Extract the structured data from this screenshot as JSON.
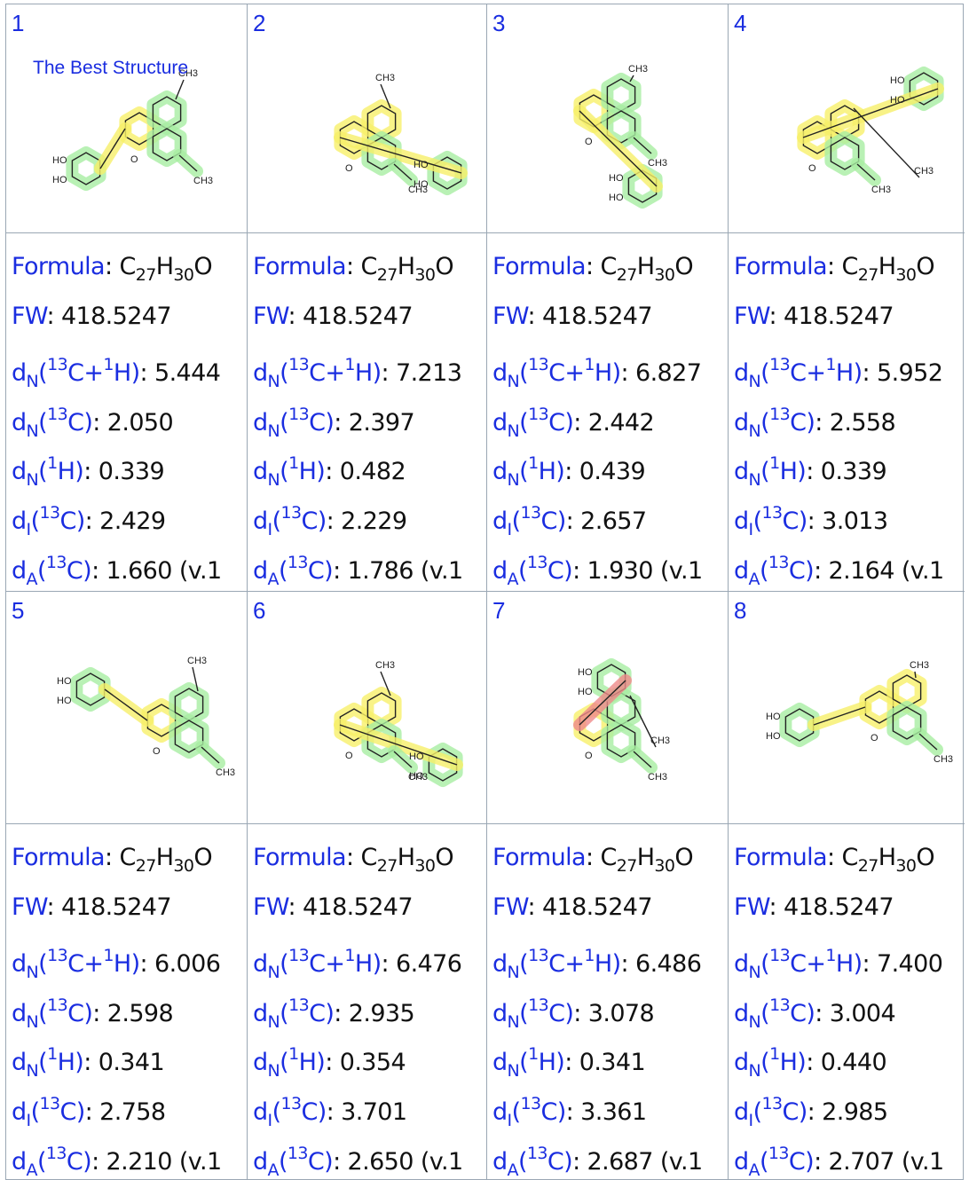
{
  "best_label": "The Best Structure",
  "candidates": [
    {
      "number": "1",
      "formula": "C27H30O",
      "fw": "418.5247",
      "dn_ch": "5.444",
      "dn_c": "2.050",
      "dn_h": "0.339",
      "di_c": "2.429",
      "da_c": "1.660 (v.1"
    },
    {
      "number": "2",
      "formula": "C27H30O",
      "fw": "418.5247",
      "dn_ch": "7.213",
      "dn_c": "2.397",
      "dn_h": "0.482",
      "di_c": "2.229",
      "da_c": "1.786 (v.1"
    },
    {
      "number": "3",
      "formula": "C27H30O",
      "fw": "418.5247",
      "dn_ch": "6.827",
      "dn_c": "2.442",
      "dn_h": "0.439",
      "di_c": "2.657",
      "da_c": "1.930 (v.1"
    },
    {
      "number": "4",
      "formula": "C27H30O",
      "fw": "418.5247",
      "dn_ch": "5.952",
      "dn_c": "2.558",
      "dn_h": "0.339",
      "di_c": "3.013",
      "da_c": "2.164 (v.1"
    },
    {
      "number": "5",
      "formula": "C27H30O",
      "fw": "418.5247",
      "dn_ch": "6.006",
      "dn_c": "2.598",
      "dn_h": "0.341",
      "di_c": "2.758",
      "da_c": "2.210 (v.1"
    },
    {
      "number": "6",
      "formula": "C27H30O",
      "fw": "418.5247",
      "dn_ch": "6.476",
      "dn_c": "2.935",
      "dn_h": "0.354",
      "di_c": "3.701",
      "da_c": "2.650 (v.1"
    },
    {
      "number": "7",
      "formula": "C27H30O",
      "fw": "418.5247",
      "dn_ch": "6.486",
      "dn_c": "3.078",
      "dn_h": "0.341",
      "di_c": "3.361",
      "da_c": "2.687 (v.1"
    },
    {
      "number": "8",
      "formula": "C27H30O",
      "fw": "418.5247",
      "dn_ch": "7.400",
      "dn_c": "3.004",
      "dn_h": "0.440",
      "di_c": "2.985",
      "da_c": "2.707 (v.1"
    }
  ],
  "colors": {
    "label": "#1a2de0",
    "value": "#111111",
    "highlight_green": "#a8eea2",
    "highlight_yellow": "#f7f06a",
    "highlight_red": "#f08a8a",
    "border": "#9aa7b4"
  }
}
